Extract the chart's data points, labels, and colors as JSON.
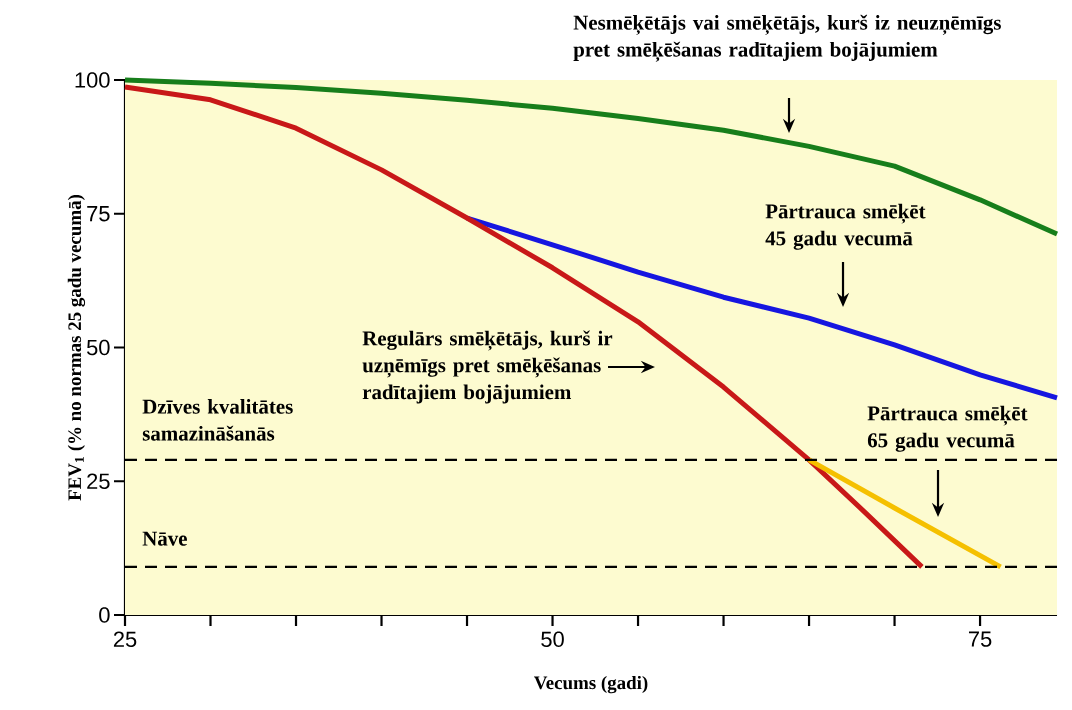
{
  "chart_data": {
    "type": "line",
    "xlabel": "Vecums (gadi)",
    "ylabel": "FEV$_{1}$ (% no normas 25 gadu vecumā)",
    "xlim": [
      25,
      79.5
    ],
    "xticks": [
      25,
      {
        "value": 30,
        "label": null
      },
      {
        "value": 35,
        "label": null
      },
      {
        "value": 40,
        "label": null
      },
      {
        "value": 45,
        "label": null
      },
      50,
      {
        "value": 55,
        "label": null
      },
      {
        "value": 60,
        "label": null
      },
      {
        "value": 65,
        "label": null
      },
      {
        "value": 70,
        "label": null
      },
      75
    ],
    "ylim": [
      0,
      100
    ],
    "yticks": [
      0,
      25,
      50,
      75,
      100
    ],
    "series": [
      {
        "color": "#177e1b",
        "x": [
          25,
          30,
          35,
          40,
          45,
          50,
          55,
          60,
          65,
          70,
          75,
          79.5
        ],
        "values": [
          100,
          99.4,
          98.6,
          97.5,
          96.2,
          94.7,
          92.8,
          90.6,
          87.6,
          83.9,
          77.6,
          71.2
        ]
      },
      {
        "color": "#1616e0",
        "x": [
          45,
          50,
          55,
          60,
          65,
          70,
          75,
          79.5
        ],
        "values": [
          74.2,
          69.2,
          64.1,
          59.4,
          55.5,
          50.5,
          44.9,
          40.6
        ]
      },
      {
        "color": "#c81818",
        "x": [
          25,
          30,
          35,
          40,
          45,
          50,
          55,
          60,
          65,
          68.3,
          71.6
        ],
        "values": [
          98.7,
          96.3,
          91,
          83.2,
          74.2,
          64.9,
          54.8,
          42.6,
          29,
          19.1,
          9
        ]
      },
      {
        "color": "#f5c000",
        "x": [
          65,
          70,
          76.2
        ],
        "values": [
          29,
          20,
          9
        ]
      }
    ],
    "ref_lines": [
      {
        "axis": "y",
        "value": 29,
        "label": "Dzīves kvalitātes samazināšanās",
        "color": "#000000",
        "line_style": "dashed"
      },
      {
        "axis": "y",
        "value": 9,
        "label": "Nāve",
        "color": "#000000",
        "line_style": "dashed"
      }
    ],
    "annotations": [
      "Nesmēķētājs vai smēķētājs, kurš iz neuzņēmīgs pret smēķēšanas radītajiem bojājumiem",
      "Pārtrauca smēķēt 45 gadu vecumā",
      "Regulārs smēķētājs, kurš ir uzņēmīgs pret smēķēšanas radītajiem bojājumiem",
      "Pārtrauca smēķēt 65 gadu vecumā"
    ]
  }
}
